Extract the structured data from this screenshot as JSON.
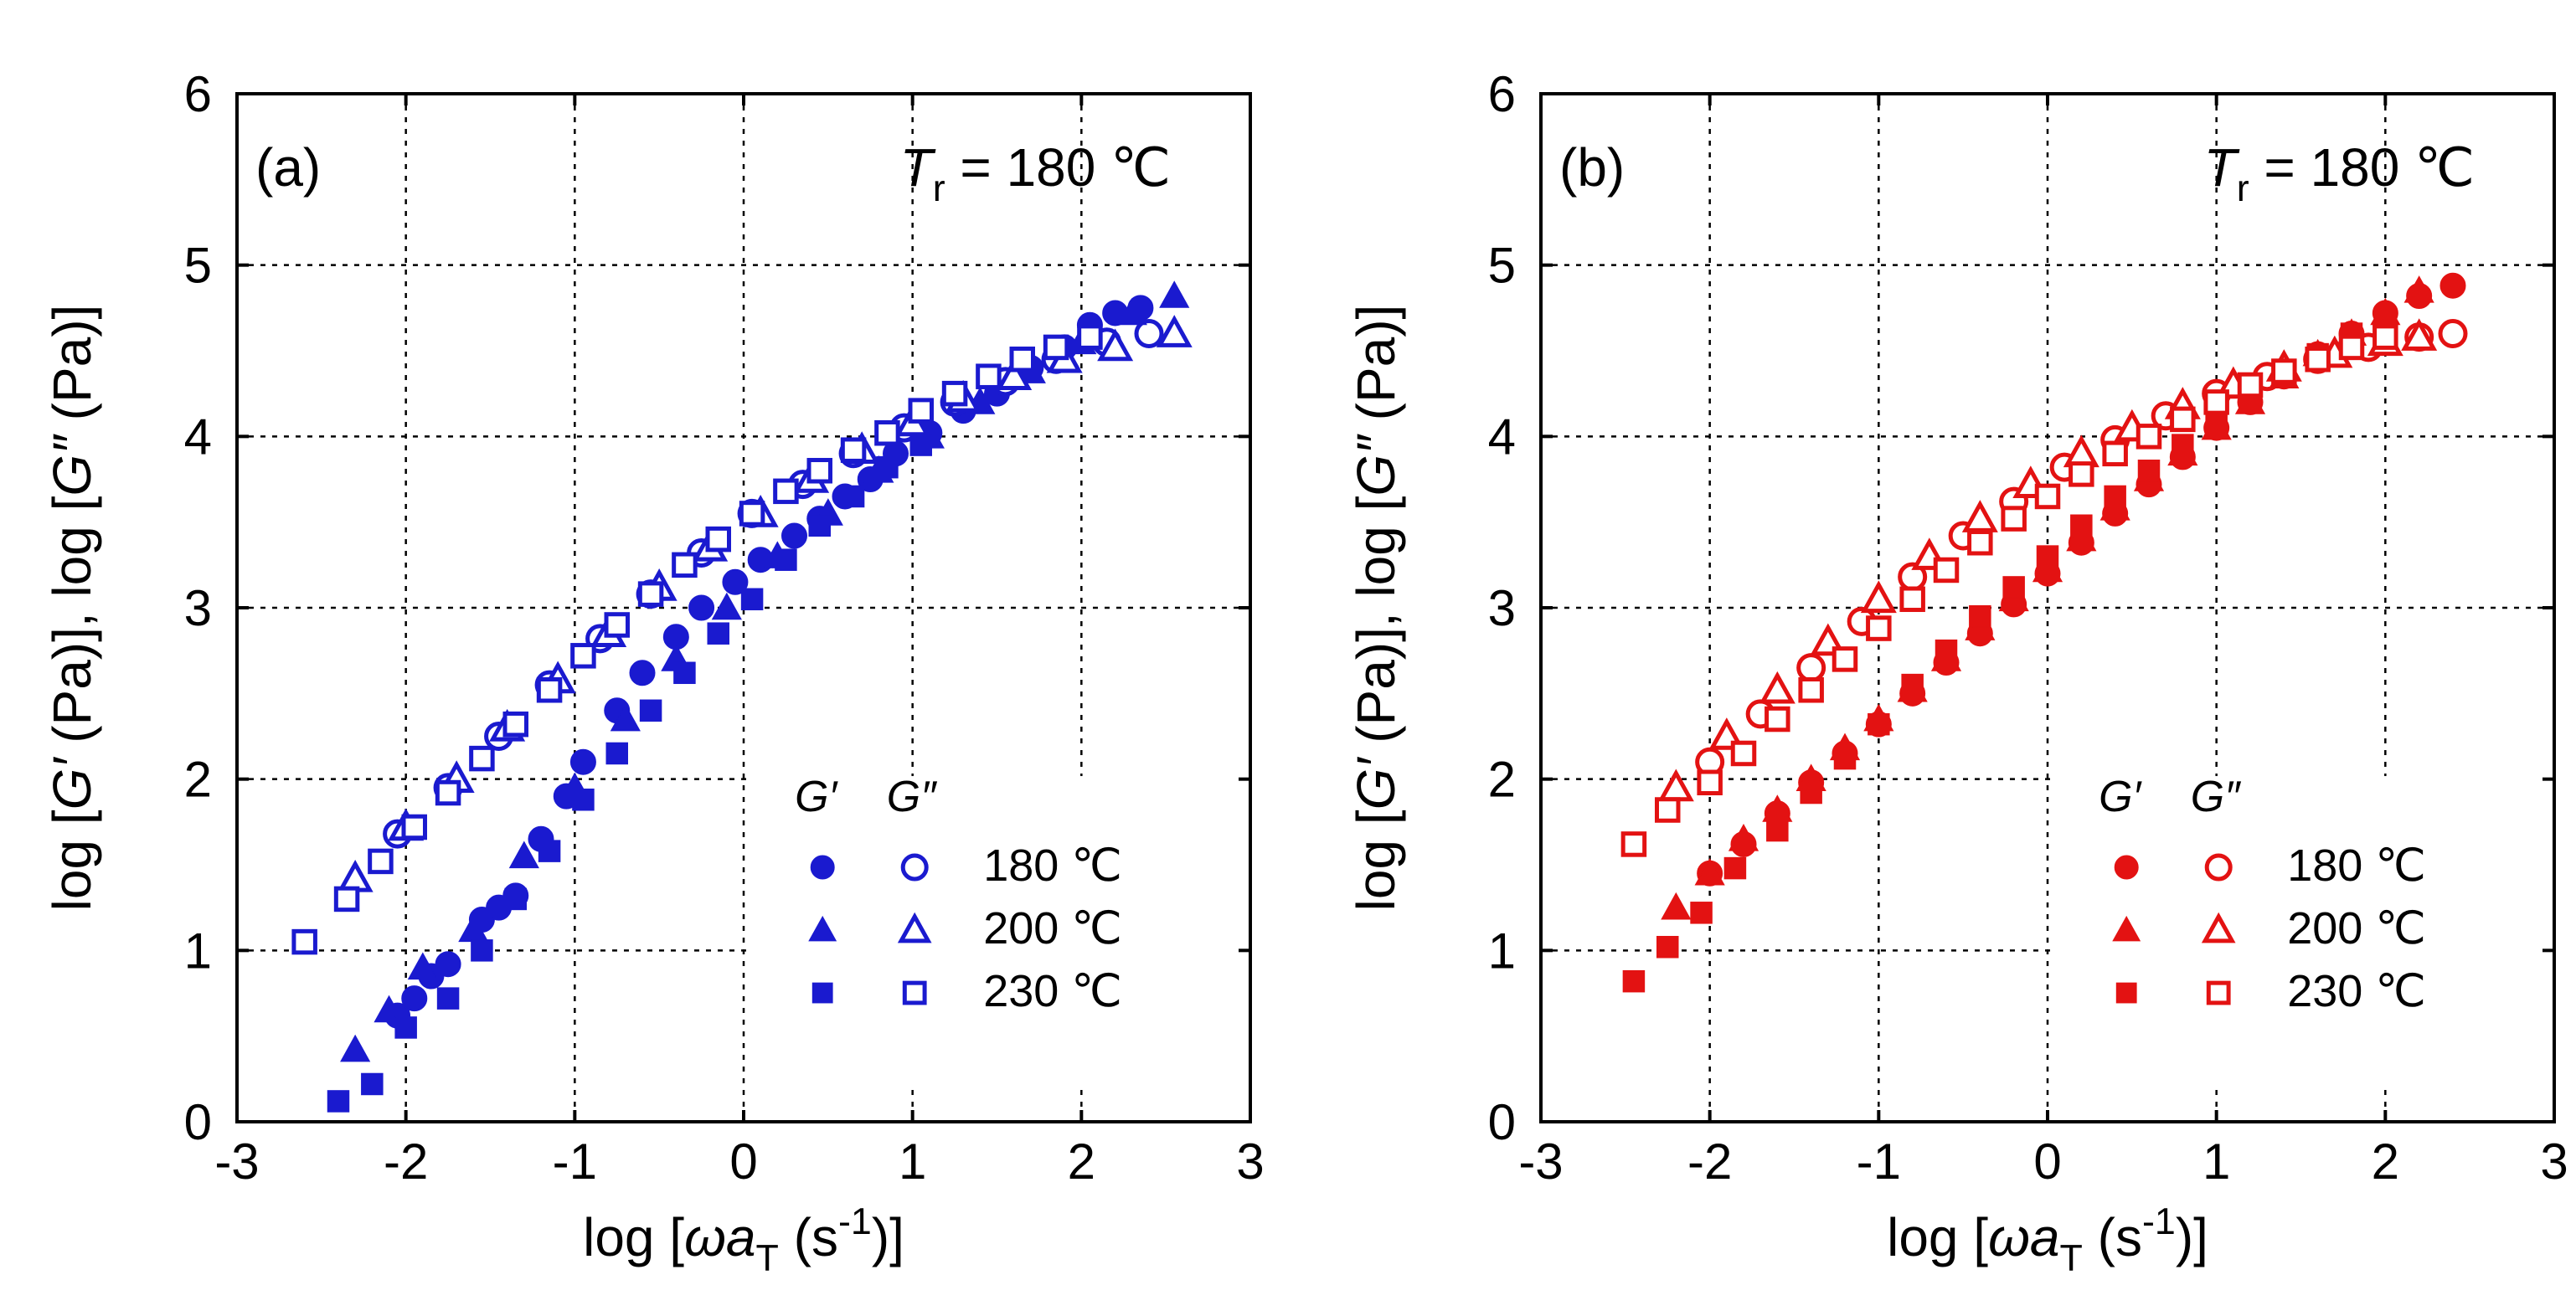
{
  "chart_data": [
    {
      "type": "scatter",
      "panel_label": "(a)",
      "annotation": {
        "T": "T",
        "sub": "r",
        "rest": " = 180 ℃"
      },
      "ylabel": [
        "log [",
        "G′",
        " (Pa)], log [",
        "G″",
        " (Pa)]"
      ],
      "xlabel": [
        "log [",
        "ω",
        "a",
        "T",
        " (s",
        "-1",
        ")]"
      ],
      "xlim": [
        -3,
        3
      ],
      "ylim": [
        0,
        6
      ],
      "xticks": [
        "-3",
        "-2",
        "-1",
        "0",
        "1",
        "2",
        "3"
      ],
      "yticks": [
        "0",
        "1",
        "2",
        "3",
        "4",
        "5",
        "6"
      ],
      "grid": true,
      "color": "#1a1acf",
      "legend": {
        "placement": "lower-right",
        "headers": [
          "G′",
          "G″"
        ],
        "rows": [
          {
            "label": "180 ℃",
            "marker": "circle"
          },
          {
            "label": "200 ℃",
            "marker": "triangle"
          },
          {
            "label": "230 ℃",
            "marker": "square"
          }
        ]
      },
      "series": [
        {
          "temp": "180 ℃",
          "modulus": "G′",
          "marker": "circle",
          "filled": true,
          "x": [
            -2.05,
            -1.95,
            -1.85,
            -1.75,
            -1.55,
            -1.45,
            -1.35,
            -1.2,
            -1.05,
            -0.95,
            -0.75,
            -0.6,
            -0.4,
            -0.25,
            -0.05,
            0.1,
            0.3,
            0.45,
            0.6,
            0.75,
            0.9,
            1.1,
            1.3,
            1.5,
            1.7,
            1.9,
            2.05,
            2.2,
            2.35
          ],
          "y": [
            0.62,
            0.72,
            0.85,
            0.92,
            1.18,
            1.25,
            1.32,
            1.65,
            1.9,
            2.1,
            2.4,
            2.62,
            2.83,
            3.0,
            3.15,
            3.28,
            3.42,
            3.52,
            3.65,
            3.75,
            3.9,
            4.02,
            4.15,
            4.25,
            4.4,
            4.52,
            4.65,
            4.72,
            4.75
          ]
        },
        {
          "temp": "180 ℃",
          "modulus": "G″",
          "marker": "circle",
          "filled": false,
          "x": [
            -2.05,
            -1.75,
            -1.45,
            -1.15,
            -0.85,
            -0.55,
            -0.25,
            0.05,
            0.35,
            0.65,
            0.95,
            1.25,
            1.55,
            1.85,
            2.15,
            2.4
          ],
          "y": [
            1.68,
            1.95,
            2.25,
            2.55,
            2.82,
            3.08,
            3.32,
            3.55,
            3.72,
            3.9,
            4.05,
            4.2,
            4.32,
            4.45,
            4.55,
            4.6
          ]
        },
        {
          "temp": "200 ℃",
          "modulus": "G′",
          "marker": "triangle",
          "filled": true,
          "x": [
            -2.3,
            -2.1,
            -1.9,
            -1.6,
            -1.3,
            -1.0,
            -0.7,
            -0.4,
            -0.1,
            0.2,
            0.5,
            0.8,
            1.1,
            1.4,
            1.7,
            2.0,
            2.3,
            2.55
          ],
          "y": [
            0.42,
            0.65,
            0.9,
            1.12,
            1.55,
            1.95,
            2.35,
            2.7,
            3.0,
            3.3,
            3.55,
            3.8,
            4.0,
            4.2,
            4.38,
            4.55,
            4.72,
            4.82
          ]
        },
        {
          "temp": "200 ℃",
          "modulus": "G″",
          "marker": "triangle",
          "filled": false,
          "x": [
            -2.3,
            -2.0,
            -1.7,
            -1.4,
            -1.1,
            -0.8,
            -0.5,
            -0.2,
            0.1,
            0.4,
            0.7,
            1.0,
            1.3,
            1.6,
            1.9,
            2.2,
            2.55
          ],
          "y": [
            1.42,
            1.72,
            2.0,
            2.3,
            2.58,
            2.85,
            3.12,
            3.35,
            3.55,
            3.75,
            3.92,
            4.08,
            4.22,
            4.35,
            4.45,
            4.52,
            4.6
          ]
        },
        {
          "temp": "230 ℃",
          "modulus": "G′",
          "marker": "square",
          "filled": true,
          "x": [
            -2.4,
            -2.2,
            -2.0,
            -1.75,
            -1.55,
            -1.35,
            -1.15,
            -0.95,
            -0.75,
            -0.55,
            -0.35,
            -0.15,
            0.05,
            0.25,
            0.45,
            0.65,
            0.85,
            1.05
          ],
          "y": [
            0.12,
            0.22,
            0.55,
            0.72,
            1.0,
            1.3,
            1.58,
            1.88,
            2.15,
            2.4,
            2.62,
            2.85,
            3.05,
            3.28,
            3.48,
            3.65,
            3.82,
            3.95
          ]
        },
        {
          "temp": "230 ℃",
          "modulus": "G″",
          "marker": "square",
          "filled": false,
          "x": [
            -2.6,
            -2.35,
            -2.15,
            -1.95,
            -1.75,
            -1.55,
            -1.35,
            -1.15,
            -0.95,
            -0.75,
            -0.55,
            -0.35,
            -0.15,
            0.05,
            0.25,
            0.45,
            0.65,
            0.85,
            1.05,
            1.25,
            1.45,
            1.65,
            1.85,
            2.05
          ],
          "y": [
            1.05,
            1.3,
            1.52,
            1.72,
            1.92,
            2.12,
            2.32,
            2.52,
            2.72,
            2.9,
            3.08,
            3.25,
            3.4,
            3.55,
            3.68,
            3.8,
            3.92,
            4.02,
            4.15,
            4.25,
            4.35,
            4.45,
            4.52,
            4.58
          ]
        }
      ]
    },
    {
      "type": "scatter",
      "panel_label": "(b)",
      "annotation": {
        "T": "T",
        "sub": "r",
        "rest": " = 180 ℃"
      },
      "ylabel": [
        "log [",
        "G′",
        " (Pa)], log [",
        "G″",
        " (Pa)]"
      ],
      "xlabel": [
        "log [",
        "ω",
        "a",
        "T",
        " (s",
        "-1",
        ")]"
      ],
      "xlim": [
        -3,
        3
      ],
      "ylim": [
        0,
        6
      ],
      "xticks": [
        "-3",
        "-2",
        "-1",
        "0",
        "1",
        "2",
        "3"
      ],
      "yticks": [
        "0",
        "1",
        "2",
        "3",
        "4",
        "5",
        "6"
      ],
      "grid": true,
      "color": "#e31212",
      "legend": {
        "placement": "lower-right",
        "headers": [
          "G′",
          "G″"
        ],
        "rows": [
          {
            "label": "180 ℃",
            "marker": "circle"
          },
          {
            "label": "200 ℃",
            "marker": "triangle"
          },
          {
            "label": "230 ℃",
            "marker": "square"
          }
        ]
      },
      "series": [
        {
          "temp": "180 ℃",
          "modulus": "G′",
          "marker": "circle",
          "filled": true,
          "x": [
            -2.0,
            -1.8,
            -1.6,
            -1.4,
            -1.2,
            -1.0,
            -0.8,
            -0.6,
            -0.4,
            -0.2,
            0.0,
            0.2,
            0.4,
            0.6,
            0.8,
            1.0,
            1.2,
            1.4,
            1.6,
            1.8,
            2.0,
            2.2,
            2.4
          ],
          "y": [
            1.45,
            1.62,
            1.8,
            1.98,
            2.15,
            2.32,
            2.5,
            2.68,
            2.85,
            3.02,
            3.2,
            3.38,
            3.55,
            3.72,
            3.88,
            4.05,
            4.2,
            4.35,
            4.48,
            4.6,
            4.72,
            4.82,
            4.88
          ]
        },
        {
          "temp": "180 ℃",
          "modulus": "G″",
          "marker": "circle",
          "filled": false,
          "x": [
            -2.0,
            -1.7,
            -1.4,
            -1.1,
            -0.8,
            -0.5,
            -0.2,
            0.1,
            0.4,
            0.7,
            1.0,
            1.3,
            1.6,
            1.9,
            2.2,
            2.4
          ],
          "y": [
            2.1,
            2.38,
            2.65,
            2.92,
            3.18,
            3.42,
            3.62,
            3.82,
            3.98,
            4.12,
            4.25,
            4.35,
            4.45,
            4.52,
            4.58,
            4.6
          ]
        },
        {
          "temp": "200 ℃",
          "modulus": "G′",
          "marker": "triangle",
          "filled": true,
          "x": [
            -2.2,
            -2.0,
            -1.8,
            -1.6,
            -1.4,
            -1.2,
            -1.0,
            -0.8,
            -0.6,
            -0.4,
            -0.2,
            0.0,
            0.2,
            0.4,
            0.6,
            0.8,
            1.0,
            1.2,
            1.4,
            1.6,
            1.8,
            2.0,
            2.2
          ],
          "y": [
            1.25,
            1.45,
            1.65,
            1.82,
            2.0,
            2.18,
            2.35,
            2.52,
            2.7,
            2.88,
            3.05,
            3.22,
            3.4,
            3.58,
            3.75,
            3.9,
            4.05,
            4.2,
            4.35,
            4.48,
            4.6,
            4.72,
            4.85
          ]
        },
        {
          "temp": "200 ℃",
          "modulus": "G″",
          "marker": "triangle",
          "filled": false,
          "x": [
            -2.2,
            -1.9,
            -1.6,
            -1.3,
            -1.0,
            -0.7,
            -0.4,
            -0.1,
            0.2,
            0.5,
            0.8,
            1.1,
            1.4,
            1.7,
            2.0,
            2.2
          ],
          "y": [
            1.95,
            2.25,
            2.52,
            2.8,
            3.05,
            3.3,
            3.52,
            3.72,
            3.9,
            4.05,
            4.18,
            4.3,
            4.4,
            4.48,
            4.55,
            4.58
          ]
        },
        {
          "temp": "230 ℃",
          "modulus": "G′",
          "marker": "square",
          "filled": true,
          "x": [
            -2.45,
            -2.25,
            -2.05,
            -1.85,
            -1.6,
            -1.4,
            -1.2,
            -1.0,
            -0.8,
            -0.6,
            -0.4,
            -0.2,
            0.0,
            0.2,
            0.4,
            0.6,
            0.8,
            1.0,
            1.2,
            1.4,
            1.6,
            1.8,
            2.0
          ],
          "y": [
            0.82,
            1.02,
            1.22,
            1.48,
            1.7,
            1.92,
            2.12,
            2.32,
            2.55,
            2.75,
            2.95,
            3.12,
            3.3,
            3.48,
            3.65,
            3.8,
            3.95,
            4.1,
            4.22,
            4.35,
            4.48,
            4.6,
            4.68
          ]
        },
        {
          "temp": "230 ℃",
          "modulus": "G″",
          "marker": "square",
          "filled": false,
          "x": [
            -2.45,
            -2.25,
            -2.0,
            -1.8,
            -1.6,
            -1.4,
            -1.2,
            -1.0,
            -0.8,
            -0.6,
            -0.4,
            -0.2,
            0.0,
            0.2,
            0.4,
            0.6,
            0.8,
            1.0,
            1.2,
            1.4,
            1.6,
            1.8,
            2.0
          ],
          "y": [
            1.62,
            1.82,
            1.98,
            2.15,
            2.35,
            2.52,
            2.7,
            2.88,
            3.05,
            3.22,
            3.38,
            3.52,
            3.65,
            3.78,
            3.9,
            4.0,
            4.1,
            4.2,
            4.3,
            4.38,
            4.45,
            4.52,
            4.58
          ]
        }
      ]
    }
  ]
}
